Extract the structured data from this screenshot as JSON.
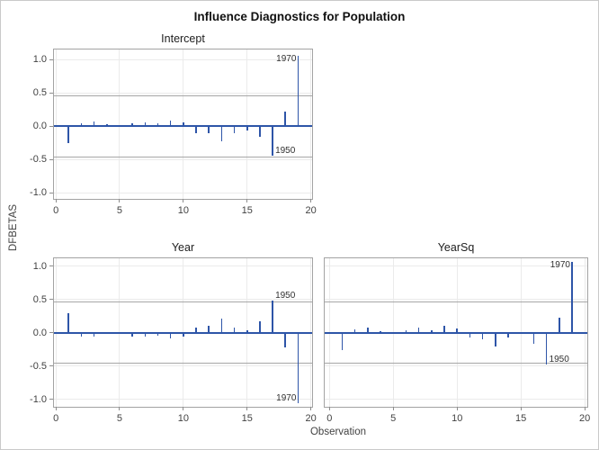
{
  "figure": {
    "title": "Influence Diagnostics for Population",
    "shared_ylabel": "DFBETAS",
    "shared_xlabel": "Observation"
  },
  "colors": {
    "needle": "#2e55a8",
    "zero_line": "#2e55a8",
    "frame": "#a3a3a3",
    "gridline": "#ebebeb",
    "refline": "#a6a6a6",
    "tick_mark": "#8e8e8e",
    "tick_text": "#424242",
    "annotation_text": "#2f2f2f",
    "figure_border": "#c9c9c9",
    "background": "#ffffff"
  },
  "chart_data": [
    {
      "id": "intercept",
      "type": "bar",
      "title": "Intercept",
      "xlabel": "",
      "ylabel": "DFBETAS",
      "x": [
        1,
        2,
        3,
        4,
        5,
        6,
        7,
        8,
        9,
        10,
        11,
        12,
        13,
        14,
        15,
        16,
        17,
        18,
        19
      ],
      "values": [
        -0.26,
        0.04,
        0.07,
        0.03,
        0.01,
        0.04,
        0.06,
        0.04,
        0.08,
        0.06,
        -0.1,
        -0.1,
        -0.22,
        -0.1,
        -0.06,
        -0.16,
        -0.44,
        0.22,
        1.06
      ],
      "xticks": [
        0,
        5,
        10,
        15,
        20
      ],
      "xtick_labels": [
        "0",
        "5",
        "10",
        "15",
        "20"
      ],
      "yticks": [
        1.0,
        0.5,
        0.0,
        -0.5,
        -1.0
      ],
      "ytick_labels": [
        "1.0",
        "0.5",
        "0.0",
        "-0.5",
        "-1.0"
      ],
      "xlim": [
        -0.15,
        20.1
      ],
      "ylim": [
        -1.09,
        1.15
      ],
      "reflines": [
        0.46,
        -0.46
      ],
      "grid": true,
      "show_ytick_labels": true,
      "show_xtick_labels": true,
      "annotations": [
        {
          "obs": 19,
          "label": "1970",
          "side": "left"
        },
        {
          "obs": 17,
          "label": "1950",
          "side": "right"
        }
      ]
    },
    {
      "id": "year",
      "type": "bar",
      "title": "Year",
      "xlabel": "Observation",
      "ylabel": "DFBETAS",
      "x": [
        1,
        2,
        3,
        4,
        5,
        6,
        7,
        8,
        9,
        10,
        11,
        12,
        13,
        14,
        15,
        16,
        17,
        18,
        19
      ],
      "values": [
        0.29,
        -0.05,
        -0.06,
        -0.02,
        -0.01,
        -0.05,
        -0.06,
        -0.04,
        -0.08,
        -0.05,
        0.08,
        0.11,
        0.22,
        0.08,
        0.04,
        0.17,
        0.49,
        -0.22,
        -1.05
      ],
      "xticks": [
        0,
        5,
        10,
        15,
        20
      ],
      "xtick_labels": [
        "0",
        "5",
        "10",
        "15",
        "20"
      ],
      "yticks": [
        1.0,
        0.5,
        0.0,
        -0.5,
        -1.0
      ],
      "ytick_labels": [
        "1.0",
        "0.5",
        "0.0",
        "-0.5",
        "-1.0"
      ],
      "xlim": [
        -0.15,
        20.1
      ],
      "ylim": [
        -1.11,
        1.12
      ],
      "reflines": [
        0.46,
        -0.46
      ],
      "grid": true,
      "show_ytick_labels": true,
      "show_xtick_labels": true,
      "annotations": [
        {
          "obs": 17,
          "label": "1950",
          "side": "right"
        },
        {
          "obs": 19,
          "label": "1970",
          "side": "left"
        }
      ]
    },
    {
      "id": "yearsq",
      "type": "bar",
      "title": "YearSq",
      "xlabel": "Observation",
      "ylabel": "DFBETAS",
      "x": [
        1,
        2,
        3,
        4,
        5,
        6,
        7,
        8,
        9,
        10,
        11,
        12,
        13,
        14,
        15,
        16,
        17,
        18,
        19
      ],
      "values": [
        -0.26,
        0.05,
        0.08,
        0.03,
        0.01,
        0.04,
        0.08,
        0.04,
        0.1,
        0.07,
        -0.07,
        -0.1,
        -0.21,
        -0.07,
        -0.02,
        -0.16,
        -0.47,
        0.23,
        1.06
      ],
      "xticks": [
        0,
        5,
        10,
        15,
        20
      ],
      "xtick_labels": [
        "0",
        "5",
        "10",
        "15",
        "20"
      ],
      "yticks": [
        1.0,
        0.5,
        0.0,
        -0.5,
        -1.0
      ],
      "ytick_labels": [
        "1.0",
        "0.5",
        "0.0",
        "-0.5",
        "-1.0"
      ],
      "xlim": [
        -0.37,
        20.2
      ],
      "ylim": [
        -1.11,
        1.12
      ],
      "reflines": [
        0.46,
        -0.46
      ],
      "grid": true,
      "show_ytick_labels": false,
      "show_xtick_labels": true,
      "annotations": [
        {
          "obs": 19,
          "label": "1970",
          "side": "left"
        },
        {
          "obs": 17,
          "label": "1950",
          "side": "right"
        }
      ]
    }
  ]
}
